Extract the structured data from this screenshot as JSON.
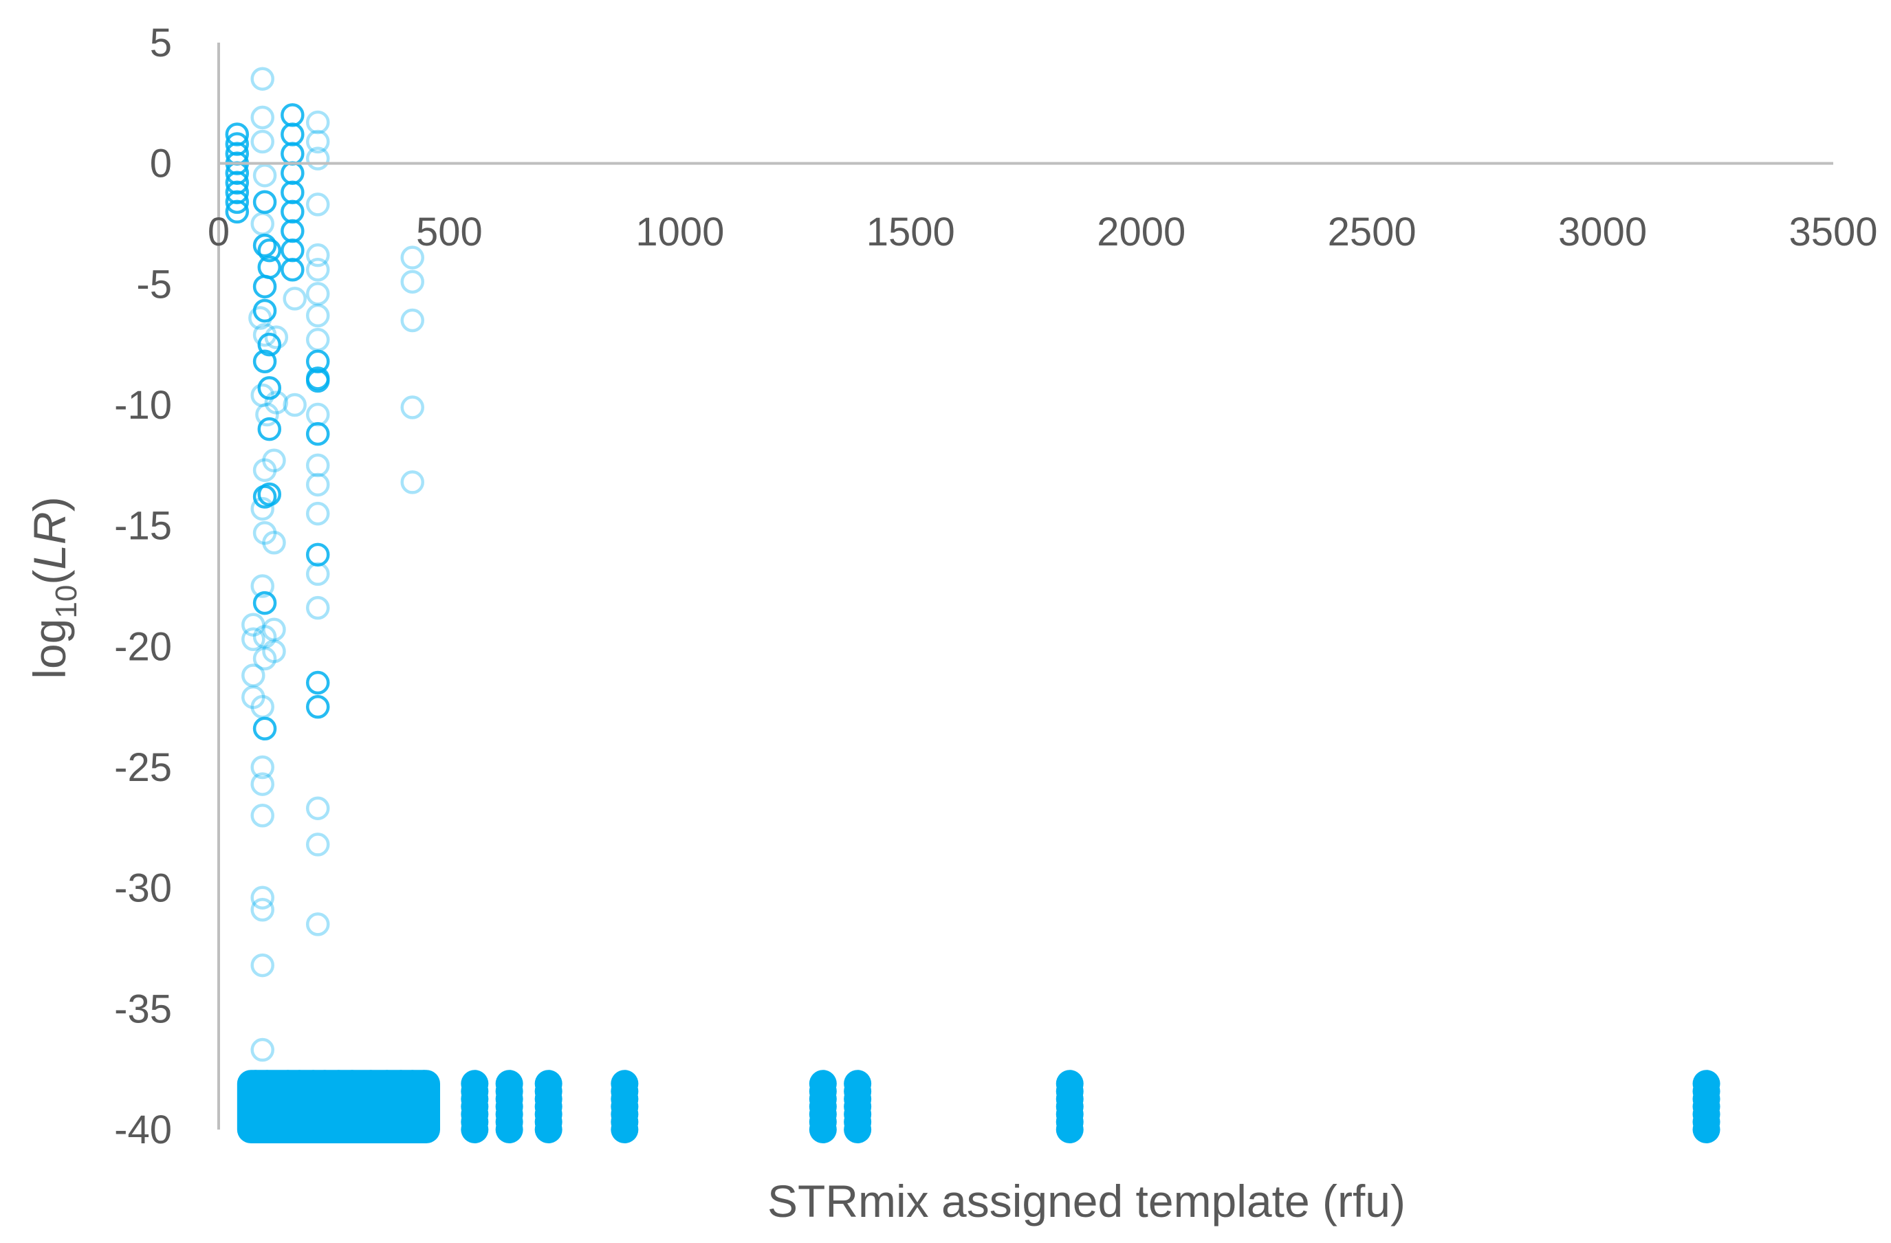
{
  "chart_data": {
    "type": "scatter",
    "xlabel": "STRmix assigned template (rfu)",
    "ylabel": "log10(LR)",
    "ylabel_parts": {
      "main": "log",
      "sub": "10",
      "paren_open": "(",
      "italic": "LR",
      "paren_close": ")"
    },
    "xlim": [
      0,
      3500
    ],
    "ylim": [
      -40,
      5
    ],
    "x_ticks": [
      0,
      500,
      1000,
      1500,
      2000,
      2500,
      3000,
      3500
    ],
    "y_ticks": [
      5,
      0,
      -5,
      -10,
      -15,
      -20,
      -25,
      -30,
      -35,
      -40
    ],
    "grid": false,
    "legend": "none",
    "marker": "open-circle",
    "colors": {
      "dense": "#00b0f0",
      "faint": "#a8dcf5",
      "axis": "#bfbfbf",
      "text": "#595959"
    },
    "series": [
      {
        "values_opaque": [
          [
            40,
            1.2
          ],
          [
            40,
            0.8
          ],
          [
            40,
            0.4
          ],
          [
            40,
            0.0
          ],
          [
            40,
            -0.4
          ],
          [
            40,
            -0.8
          ],
          [
            40,
            -1.2
          ],
          [
            40,
            -1.6
          ],
          [
            40,
            -2.0
          ],
          [
            100,
            -1.6
          ],
          [
            100,
            -3.4
          ],
          [
            100,
            -5.1
          ],
          [
            100,
            -6.1
          ],
          [
            100,
            -8.2
          ],
          [
            100,
            -13.8
          ],
          [
            100,
            -18.2
          ],
          [
            100,
            -23.4
          ],
          [
            110,
            -3.6
          ],
          [
            110,
            -4.3
          ],
          [
            110,
            -7.5
          ],
          [
            110,
            -9.3
          ],
          [
            110,
            -11.0
          ],
          [
            110,
            -13.7
          ],
          [
            160,
            2.0
          ],
          [
            160,
            1.2
          ],
          [
            160,
            0.4
          ],
          [
            160,
            -0.4
          ],
          [
            160,
            -1.2
          ],
          [
            160,
            -2.0
          ],
          [
            160,
            -2.8
          ],
          [
            160,
            -3.6
          ],
          [
            160,
            -4.4
          ],
          [
            215,
            -8.2
          ],
          [
            215,
            -8.9
          ],
          [
            215,
            -9.0
          ],
          [
            215,
            -11.2
          ],
          [
            215,
            -16.2
          ],
          [
            215,
            -21.5
          ],
          [
            215,
            -22.5
          ]
        ],
        "values_faint": [
          [
            95,
            3.5
          ],
          [
            95,
            1.9
          ],
          [
            95,
            0.9
          ],
          [
            100,
            -0.5
          ],
          [
            95,
            -2.5
          ],
          [
            90,
            -6.4
          ],
          [
            100,
            -7.1
          ],
          [
            95,
            -9.6
          ],
          [
            105,
            -10.4
          ],
          [
            100,
            -12.7
          ],
          [
            95,
            -14.3
          ],
          [
            100,
            -15.3
          ],
          [
            95,
            -17.5
          ],
          [
            100,
            -19.6
          ],
          [
            100,
            -20.5
          ],
          [
            95,
            -22.5
          ],
          [
            95,
            -25.0
          ],
          [
            95,
            -25.7
          ],
          [
            95,
            -27.0
          ],
          [
            95,
            -30.4
          ],
          [
            95,
            -30.9
          ],
          [
            95,
            -33.2
          ],
          [
            95,
            -36.7
          ],
          [
            75,
            -19.1
          ],
          [
            75,
            -19.7
          ],
          [
            75,
            -21.2
          ],
          [
            75,
            -22.1
          ],
          [
            120,
            -15.7
          ],
          [
            120,
            -19.3
          ],
          [
            120,
            -20.2
          ],
          [
            120,
            -12.3
          ],
          [
            125,
            -7.2
          ],
          [
            125,
            -9.9
          ],
          [
            215,
            1.7
          ],
          [
            215,
            0.9
          ],
          [
            215,
            0.2
          ],
          [
            215,
            -1.7
          ],
          [
            215,
            -3.8
          ],
          [
            215,
            -4.4
          ],
          [
            215,
            -5.4
          ],
          [
            215,
            -6.3
          ],
          [
            215,
            -7.3
          ],
          [
            215,
            -10.4
          ],
          [
            215,
            -12.5
          ],
          [
            215,
            -13.3
          ],
          [
            215,
            -14.5
          ],
          [
            215,
            -17.0
          ],
          [
            215,
            -18.4
          ],
          [
            215,
            -26.7
          ],
          [
            215,
            -28.2
          ],
          [
            215,
            -31.5
          ],
          [
            165,
            -5.6
          ],
          [
            165,
            -10.0
          ],
          [
            420,
            -3.9
          ],
          [
            420,
            -4.9
          ],
          [
            420,
            -6.5
          ],
          [
            420,
            -10.1
          ],
          [
            420,
            -13.2
          ]
        ],
        "values_floor": [
          [
            80,
            -39
          ],
          [
            105,
            -39
          ],
          [
            150,
            -39
          ],
          [
            175,
            -39
          ],
          [
            205,
            -39
          ],
          [
            230,
            -39
          ],
          [
            260,
            -39
          ],
          [
            290,
            -39
          ],
          [
            330,
            -39
          ],
          [
            365,
            -39
          ],
          [
            395,
            -39
          ],
          [
            420,
            -39
          ],
          [
            445,
            -39
          ],
          [
            555,
            -39
          ],
          [
            630,
            -39
          ],
          [
            715,
            -39
          ],
          [
            880,
            -39
          ],
          [
            1310,
            -39
          ],
          [
            1385,
            -39
          ],
          [
            1845,
            -39
          ],
          [
            3225,
            -39
          ]
        ],
        "floor_spans": [
          [
            40,
            480
          ],
          [
            545,
            570
          ],
          [
            620,
            645
          ],
          [
            705,
            730
          ],
          [
            870,
            895
          ],
          [
            1300,
            1325
          ],
          [
            1375,
            1400
          ],
          [
            1835,
            1860
          ],
          [
            3215,
            3240
          ]
        ]
      }
    ]
  }
}
